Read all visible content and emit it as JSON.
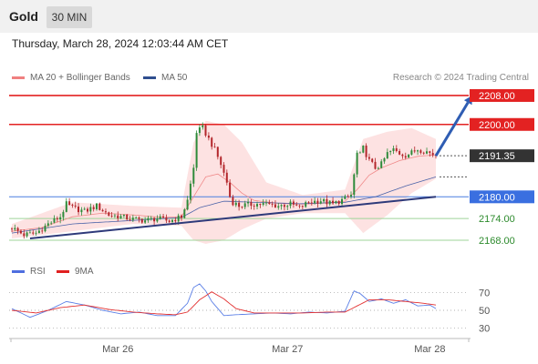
{
  "header": {
    "symbol": "Gold",
    "timeframe": "30 MIN",
    "datetime": "Thursday, March 28, 2024 12:03:44 AM CET",
    "copyright": "Research © 2024 Trading Central"
  },
  "chart_data": [
    {
      "type": "candlestick",
      "legend": [
        {
          "label": "MA 20 + Bollinger Bands",
          "color": "#f08080"
        },
        {
          "label": "MA 50",
          "color": "#2f4f8f"
        }
      ],
      "x_ticks": [
        "Mar 26",
        "Mar 27",
        "Mar 28"
      ],
      "price_labels": [
        {
          "value": 2208.0,
          "text": "2208.00",
          "style": "resistance"
        },
        {
          "value": 2200.0,
          "text": "2200.00",
          "style": "resistance"
        },
        {
          "value": 2191.35,
          "text": "2191.35",
          "style": "last"
        },
        {
          "value": 2180.0,
          "text": "2180.00",
          "style": "pivot"
        },
        {
          "value": 2174.0,
          "text": "2174.00",
          "style": "support"
        },
        {
          "value": 2168.0,
          "text": "2168.00",
          "style": "support"
        }
      ],
      "ylim": [
        2166.5,
        2210.5
      ],
      "n_bars": 141,
      "close_anchors": [
        [
          0,
          2171.5
        ],
        [
          4,
          2169.5
        ],
        [
          8,
          2170
        ],
        [
          12,
          2172.5
        ],
        [
          16,
          2174.5
        ],
        [
          18,
          2178
        ],
        [
          20,
          2177
        ],
        [
          24,
          2176
        ],
        [
          28,
          2177.5
        ],
        [
          32,
          2175
        ],
        [
          36,
          2174.5
        ],
        [
          40,
          2173.8
        ],
        [
          44,
          2173.5
        ],
        [
          48,
          2174
        ],
        [
          52,
          2173.3
        ],
        [
          56,
          2174.5
        ],
        [
          58,
          2179
        ],
        [
          60,
          2188
        ],
        [
          61,
          2198
        ],
        [
          63,
          2199
        ],
        [
          65,
          2196
        ],
        [
          67,
          2193
        ],
        [
          69,
          2189
        ],
        [
          71,
          2184
        ],
        [
          72,
          2180
        ],
        [
          73,
          2178.5
        ],
        [
          75,
          2177.5
        ],
        [
          80,
          2178
        ],
        [
          84,
          2178
        ],
        [
          88,
          2177.5
        ],
        [
          92,
          2178
        ],
        [
          95,
          2177
        ],
        [
          98,
          2178.5
        ],
        [
          102,
          2179
        ],
        [
          106,
          2178
        ],
        [
          110,
          2179.5
        ],
        [
          112,
          2180.5
        ],
        [
          113,
          2186
        ],
        [
          114,
          2192
        ],
        [
          115,
          2191.5
        ],
        [
          116,
          2193.5
        ],
        [
          118,
          2190
        ],
        [
          120,
          2188
        ],
        [
          122,
          2189
        ],
        [
          124,
          2192
        ],
        [
          126,
          2193
        ],
        [
          128,
          2192
        ],
        [
          130,
          2191.5
        ],
        [
          132,
          2192.2
        ],
        [
          134,
          2193.2
        ],
        [
          137,
          2192.5
        ],
        [
          140,
          2191.35
        ]
      ],
      "ma20_points": [
        [
          0,
          2170.5
        ],
        [
          10,
          2171.5
        ],
        [
          20,
          2174.5
        ],
        [
          30,
          2175.5
        ],
        [
          40,
          2175
        ],
        [
          50,
          2174.3
        ],
        [
          56,
          2174.5
        ],
        [
          60,
          2180
        ],
        [
          64,
          2185.5
        ],
        [
          68,
          2186.3
        ],
        [
          72,
          2184
        ],
        [
          76,
          2181
        ],
        [
          80,
          2179
        ],
        [
          88,
          2178.2
        ],
        [
          96,
          2178
        ],
        [
          104,
          2178.3
        ],
        [
          110,
          2178.8
        ],
        [
          114,
          2182
        ],
        [
          118,
          2186
        ],
        [
          122,
          2188
        ],
        [
          128,
          2190
        ],
        [
          134,
          2191.2
        ],
        [
          140,
          2191.6
        ]
      ],
      "ma50_points": [
        [
          0,
          2170
        ],
        [
          20,
          2172.5
        ],
        [
          40,
          2173.5
        ],
        [
          56,
          2174.3
        ],
        [
          62,
          2177
        ],
        [
          70,
          2178.8
        ],
        [
          80,
          2178.5
        ],
        [
          95,
          2178.1
        ],
        [
          110,
          2178.5
        ],
        [
          120,
          2180
        ],
        [
          130,
          2183
        ],
        [
          140,
          2185.5
        ]
      ],
      "bb_upper_points": [
        [
          0,
          2172.5
        ],
        [
          20,
          2178.5
        ],
        [
          40,
          2177.5
        ],
        [
          56,
          2177
        ],
        [
          60,
          2195
        ],
        [
          64,
          2201
        ],
        [
          70,
          2200
        ],
        [
          76,
          2195
        ],
        [
          84,
          2184
        ],
        [
          96,
          2180.5
        ],
        [
          110,
          2182
        ],
        [
          116,
          2196
        ],
        [
          124,
          2198
        ],
        [
          132,
          2199
        ],
        [
          140,
          2196
        ]
      ],
      "bb_lower_points": [
        [
          0,
          2168.5
        ],
        [
          20,
          2170.5
        ],
        [
          40,
          2172.5
        ],
        [
          56,
          2172
        ],
        [
          60,
          2168
        ],
        [
          64,
          2167
        ],
        [
          70,
          2168
        ],
        [
          76,
          2171
        ],
        [
          84,
          2174
        ],
        [
          96,
          2175.5
        ],
        [
          110,
          2175.5
        ],
        [
          116,
          2170
        ],
        [
          124,
          2175
        ],
        [
          132,
          2181
        ],
        [
          140,
          2185
        ]
      ],
      "trendline": {
        "x0": 6,
        "y0": 2168.5,
        "x1": 140,
        "y1": 2180.0
      },
      "forecast_arrow": {
        "x0": 140,
        "y0": 2191.35,
        "x1": 152,
        "y1": 2208.0
      }
    },
    {
      "type": "line",
      "legend": [
        {
          "label": "RSI",
          "color": "#4f6fdf"
        },
        {
          "label": "9MA",
          "color": "#e02020"
        }
      ],
      "ylim": [
        20,
        80
      ],
      "ticks": [
        70,
        50,
        30
      ],
      "rsi_points": [
        [
          0,
          52
        ],
        [
          6,
          42
        ],
        [
          12,
          50
        ],
        [
          18,
          60
        ],
        [
          24,
          56
        ],
        [
          30,
          50
        ],
        [
          36,
          46
        ],
        [
          42,
          48
        ],
        [
          48,
          44
        ],
        [
          54,
          44
        ],
        [
          58,
          58
        ],
        [
          60,
          76
        ],
        [
          62,
          80
        ],
        [
          64,
          72
        ],
        [
          66,
          60
        ],
        [
          68,
          52
        ],
        [
          70,
          44
        ],
        [
          74,
          45
        ],
        [
          80,
          46
        ],
        [
          86,
          47
        ],
        [
          92,
          46
        ],
        [
          98,
          48
        ],
        [
          104,
          47
        ],
        [
          110,
          49
        ],
        [
          113,
          72
        ],
        [
          115,
          69
        ],
        [
          118,
          60
        ],
        [
          122,
          63
        ],
        [
          126,
          58
        ],
        [
          130,
          62
        ],
        [
          134,
          55
        ],
        [
          138,
          56
        ],
        [
          140,
          52
        ]
      ],
      "ma9_points": [
        [
          0,
          50
        ],
        [
          8,
          47
        ],
        [
          16,
          53
        ],
        [
          24,
          56
        ],
        [
          32,
          51
        ],
        [
          40,
          48
        ],
        [
          48,
          46
        ],
        [
          54,
          45
        ],
        [
          58,
          48
        ],
        [
          62,
          62
        ],
        [
          66,
          71
        ],
        [
          70,
          63
        ],
        [
          74,
          52
        ],
        [
          80,
          47
        ],
        [
          88,
          47
        ],
        [
          96,
          47
        ],
        [
          104,
          48
        ],
        [
          110,
          48
        ],
        [
          114,
          55
        ],
        [
          118,
          62
        ],
        [
          124,
          62
        ],
        [
          130,
          60
        ],
        [
          136,
          58
        ],
        [
          140,
          56
        ]
      ]
    }
  ]
}
